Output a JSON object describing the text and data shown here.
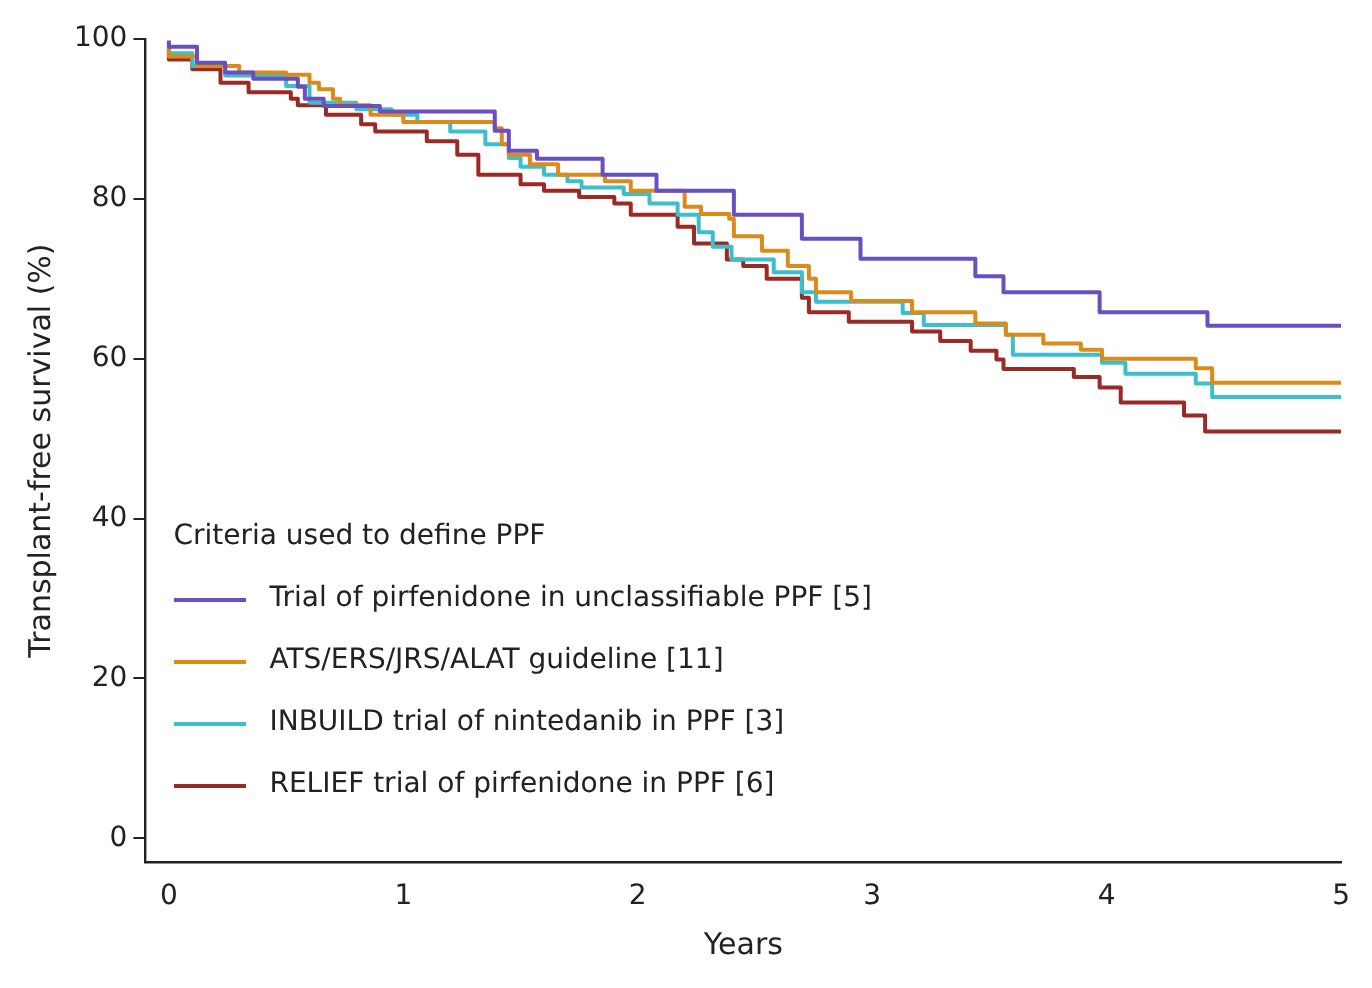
{
  "chart_data": {
    "type": "step",
    "xlabel": "Years",
    "ylabel": "Transplant-free survival (%)",
    "legend_title": "Criteria used to define PPF",
    "xlim": [
      -0.1,
      5
    ],
    "ylim": [
      -3,
      100
    ],
    "xticks": [
      0,
      1,
      2,
      3,
      4,
      5
    ],
    "yticks": [
      0,
      20,
      40,
      60,
      80,
      100
    ],
    "grid": false,
    "legend": "bottom left",
    "series": [
      {
        "name": "Trial of pirfenidone in unclassifiable PPF [5]",
        "color": "#6a4fc0",
        "x": [
          0,
          0.12,
          0.24,
          0.36,
          0.55,
          0.58,
          0.66,
          0.9,
          1.08,
          1.39,
          1.45,
          1.57,
          1.85,
          2.08,
          2.17,
          2.41,
          2.7,
          2.95,
          3.44,
          3.56,
          3.97,
          4.43,
          4.75,
          5
        ],
        "values": [
          99.8,
          99,
          97,
          95.8,
          95,
          94,
          92.5,
          91.6,
          90.9,
          90.9,
          88.5,
          86,
          85,
          83,
          81,
          81,
          78,
          75,
          72.5,
          70.3,
          68.3,
          65.8,
          64.1,
          64.1
        ]
      },
      {
        "name": "ATS/ERS/JRS/ALAT guideline [11]",
        "color": "#d98c1a",
        "x": [
          0,
          0.12,
          0.3,
          0.5,
          0.6,
          0.64,
          0.7,
          0.73,
          0.86,
          1.0,
          1.39,
          1.42,
          1.45,
          1.54,
          1.66,
          1.86,
          1.97,
          2.2,
          2.27,
          2.39,
          2.41,
          2.53,
          2.64,
          2.73,
          2.76,
          2.91,
          3.17,
          3.44,
          3.57,
          3.73,
          3.89,
          3.98,
          4.38,
          4.45,
          4.75,
          5
        ],
        "values": [
          99,
          97.8,
          96.6,
          95.8,
          95.5,
          94.5,
          93.7,
          92.5,
          91.7,
          90.5,
          89.6,
          88.8,
          86.8,
          85.5,
          84.3,
          83,
          82.2,
          81,
          79,
          78.1,
          77.5,
          75.3,
          73.5,
          71.6,
          70,
          68.3,
          67.2,
          65.8,
          64.4,
          63,
          61.9,
          61.1,
          60,
          58.8,
          57,
          57
        ]
      },
      {
        "name": "INBUILD trial of nintedanib in PPF [3]",
        "color": "#3cbfcc",
        "x": [
          0,
          0.1,
          0.24,
          0.5,
          0.6,
          0.8,
          0.95,
          1.06,
          1.2,
          1.35,
          1.45,
          1.5,
          1.6,
          1.7,
          1.76,
          1.94,
          2.05,
          2.17,
          2.26,
          2.32,
          2.4,
          2.58,
          2.7,
          2.76,
          3.13,
          3.22,
          3.57,
          3.6,
          3.98,
          4.08,
          4.38,
          4.45,
          4.75,
          5
        ],
        "values": [
          99,
          98.2,
          96.6,
          95.4,
          94.1,
          92,
          91.2,
          90.5,
          89.6,
          88.4,
          86.8,
          85.1,
          84,
          83,
          82.2,
          81.4,
          80.6,
          79.4,
          78,
          75.8,
          74,
          72.4,
          70.8,
          68.3,
          67.1,
          65.7,
          64.2,
          63,
          60.5,
          59.5,
          58.1,
          56.9,
          55.2,
          55.2
        ]
      },
      {
        "name": "RELIEF trial of pirfenidone in PPF [6]",
        "color": "#9a2a26",
        "x": [
          0,
          0.1,
          0.22,
          0.34,
          0.52,
          0.55,
          0.67,
          0.82,
          0.88,
          1.1,
          1.23,
          1.32,
          1.5,
          1.6,
          1.75,
          1.9,
          1.97,
          2.17,
          2.24,
          2.38,
          2.45,
          2.55,
          2.7,
          2.73,
          2.9,
          3.17,
          3.29,
          3.42,
          3.53,
          3.56,
          3.86,
          3.97,
          4.06,
          4.33,
          4.42,
          4.75,
          5
        ],
        "values": [
          98.6,
          97.4,
          96.2,
          94.5,
          93.3,
          92.5,
          91.7,
          90.5,
          89.3,
          88.4,
          87.2,
          85.5,
          83,
          81.8,
          81,
          80.2,
          79.4,
          78,
          76.5,
          74.4,
          72.4,
          71.6,
          70,
          67.6,
          65.8,
          64.6,
          63.4,
          62.2,
          61,
          59.9,
          58.7,
          57.7,
          56.4,
          54.5,
          52.9,
          50.9,
          50.9
        ]
      }
    ]
  }
}
